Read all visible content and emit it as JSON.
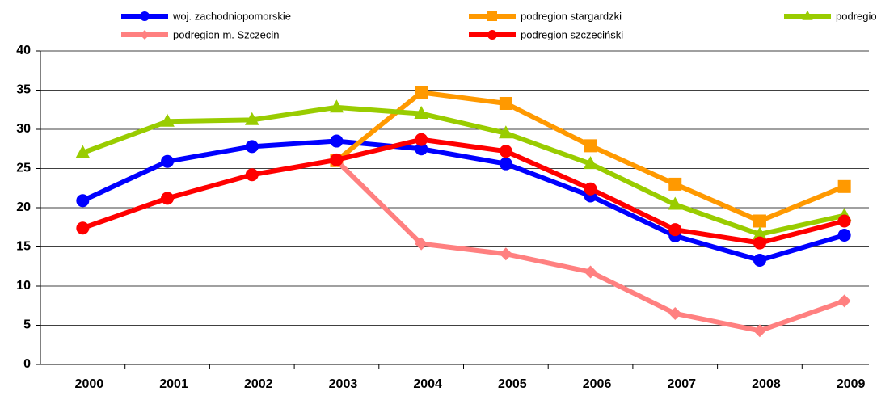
{
  "chart_data": {
    "type": "line",
    "categories": [
      "2000",
      "2001",
      "2002",
      "2003",
      "2004",
      "2005",
      "2006",
      "2007",
      "2008",
      "2009"
    ],
    "series": [
      {
        "name": "woj. zachodniopomorskie",
        "color": "#0000ff",
        "marker": "circle",
        "values": [
          20.9,
          25.9,
          27.8,
          28.5,
          27.5,
          25.6,
          21.5,
          16.4,
          13.3,
          16.5
        ]
      },
      {
        "name": "podregion stargardzki",
        "color": "#ff9900",
        "marker": "square",
        "values": [
          null,
          null,
          null,
          26.0,
          34.7,
          33.3,
          27.9,
          23.0,
          18.3,
          22.7
        ]
      },
      {
        "name": "podregion koszaliński",
        "color": "#99cc00",
        "marker": "triangle",
        "values": [
          27.0,
          31.0,
          31.2,
          32.8,
          32.0,
          29.5,
          25.6,
          20.4,
          16.6,
          19.0
        ]
      },
      {
        "name": "podregion m. Szczecin",
        "color": "#ff8080",
        "marker": "diamond",
        "values": [
          null,
          null,
          null,
          26.0,
          15.4,
          14.1,
          11.8,
          6.5,
          4.3,
          8.1
        ]
      },
      {
        "name": "podregion szczeciński",
        "color": "#ff0000",
        "marker": "circle",
        "values": [
          17.4,
          21.2,
          24.2,
          26.1,
          28.7,
          27.2,
          22.4,
          17.2,
          15.5,
          18.3
        ]
      }
    ],
    "ylim": [
      0,
      40
    ],
    "yticks": [
      0,
      5,
      10,
      15,
      20,
      25,
      30,
      35,
      40
    ],
    "grid": true,
    "legend": "top"
  }
}
